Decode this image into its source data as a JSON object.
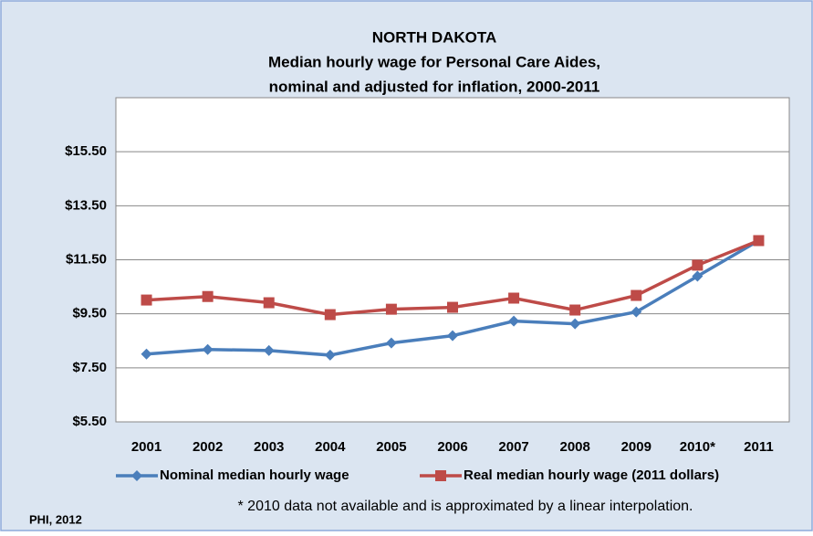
{
  "chart_data": {
    "type": "line",
    "title": "NORTH DAKOTA",
    "subtitle": [
      "Median hourly wage for Personal Care Aides,",
      "nominal and adjusted for inflation, 2000-2011"
    ],
    "categories": [
      "2001",
      "2002",
      "2003",
      "2004",
      "2005",
      "2006",
      "2007",
      "2008",
      "2009",
      "2010*",
      "2011"
    ],
    "series": [
      {
        "name": "Nominal median hourly wage",
        "color": "#4a7ebb",
        "marker": "diamond",
        "values": [
          8.01,
          8.18,
          8.14,
          7.97,
          8.42,
          8.69,
          9.23,
          9.13,
          9.57,
          10.89,
          12.21
        ]
      },
      {
        "name": "Real median hourly wage (2011 dollars)",
        "color": "#be4b48",
        "marker": "square",
        "values": [
          10.01,
          10.14,
          9.91,
          9.47,
          9.67,
          9.74,
          10.08,
          9.64,
          10.18,
          11.3,
          12.21
        ]
      }
    ],
    "ylim": [
      5.5,
      17.5
    ],
    "yticks": [
      {
        "value": 5.5,
        "label": "$5.50"
      },
      {
        "value": 7.5,
        "label": "$7.50"
      },
      {
        "value": 9.5,
        "label": "$9.50"
      },
      {
        "value": 11.5,
        "label": "$11.50"
      },
      {
        "value": 13.5,
        "label": "$13.50"
      },
      {
        "value": 15.5,
        "label": "$15.50"
      }
    ],
    "grid": true,
    "legend": "bottom",
    "footnote": "* 2010 data not available and is approximated by a linear interpolation.",
    "source": "PHI, 2012"
  }
}
